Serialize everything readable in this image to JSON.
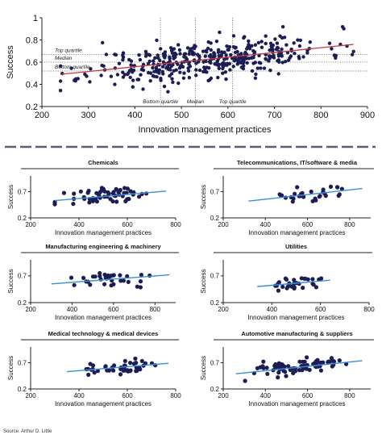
{
  "colors": {
    "dot": "#1d1d55",
    "trend_main": "#c43a3a",
    "trend_sub": "#3a8fd8",
    "axis": "#222222",
    "divider": "#5a5f78",
    "quartile_line": "#666666"
  },
  "source": "Source: Arthur D. Little",
  "chart_data": [
    {
      "type": "scatter",
      "xlabel": "Innovation management practices",
      "ylabel": "Success",
      "xlim": [
        200,
        900
      ],
      "ylim": [
        0.2,
        1.0
      ],
      "xticks": [
        "200",
        "300",
        "400",
        "500",
        "600",
        "700",
        "800",
        "900"
      ],
      "yticks": [
        "0.2",
        "0.4",
        "0.6",
        "0.8",
        "1"
      ],
      "trend": [
        [
          240,
          0.49
        ],
        [
          870,
          0.76
        ]
      ],
      "h_quartiles": [
        {
          "label": "Top quartile",
          "y": 0.67
        },
        {
          "label": "Median",
          "y": 0.6
        },
        {
          "label": "Bottom quartile",
          "y": 0.52
        }
      ],
      "v_quartiles": [
        {
          "label": "Bottom quartile",
          "x": 455
        },
        {
          "label": "Median",
          "x": 530
        },
        {
          "label": "Top quartile",
          "x": 610
        }
      ],
      "n_points": 420,
      "seed": 11
    },
    {
      "type": "scatter",
      "title": "Chemicals",
      "xlabel": "Innovation management practices",
      "ylabel": "Success",
      "xlim": [
        200,
        800
      ],
      "ylim": [
        0.2,
        1.0
      ],
      "xticks": [
        "200",
        "400",
        "600",
        "800"
      ],
      "yticks": [
        "0.2",
        "0.7"
      ],
      "trend": [
        [
          300,
          0.53
        ],
        [
          760,
          0.71
        ]
      ],
      "n_points": 60,
      "xrange": [
        300,
        760
      ],
      "seed": 21
    },
    {
      "type": "scatter",
      "title": "Telecommunications, IT/software & media",
      "xlabel": "Innovation management practices",
      "ylabel": "Success",
      "xlim": [
        200,
        900
      ],
      "ylim": [
        0.2,
        1.0
      ],
      "xticks": [
        "200",
        "400",
        "600",
        "800"
      ],
      "yticks": [
        "0.2",
        "0.7"
      ],
      "trend": [
        [
          320,
          0.52
        ],
        [
          860,
          0.76
        ]
      ],
      "n_points": 30,
      "xrange": [
        320,
        860
      ],
      "seed": 31
    },
    {
      "type": "scatter",
      "title": "Manufacturing engineering & machinery",
      "xlabel": "Innovation management practices",
      "ylabel": "Success",
      "xlim": [
        200,
        900
      ],
      "ylim": [
        0.2,
        1.0
      ],
      "xticks": [
        "200",
        "400",
        "600",
        "800"
      ],
      "yticks": [
        "0.2",
        "0.7"
      ],
      "trend": [
        [
          300,
          0.55
        ],
        [
          870,
          0.72
        ]
      ],
      "n_points": 35,
      "xrange": [
        300,
        870
      ],
      "seed": 41
    },
    {
      "type": "scatter",
      "title": "Utilities",
      "xlabel": "Innovation management practices",
      "ylabel": "Success",
      "xlim": [
        200,
        800
      ],
      "ylim": [
        0.2,
        1.0
      ],
      "xticks": [
        "200",
        "400",
        "600",
        "800"
      ],
      "yticks": [
        "0.2",
        "0.7"
      ],
      "trend": [
        [
          340,
          0.5
        ],
        [
          640,
          0.62
        ]
      ],
      "n_points": 30,
      "xrange": [
        340,
        640
      ],
      "seed": 51
    },
    {
      "type": "scatter",
      "title": "Medical technology & medical devices",
      "xlabel": "Innovation management practices",
      "ylabel": "Success",
      "xlim": [
        200,
        800
      ],
      "ylim": [
        0.2,
        1.0
      ],
      "xticks": [
        "200",
        "400",
        "600",
        "800"
      ],
      "yticks": [
        "0.2",
        "0.7"
      ],
      "trend": [
        [
          350,
          0.53
        ],
        [
          770,
          0.69
        ]
      ],
      "n_points": 45,
      "xrange": [
        350,
        770
      ],
      "seed": 61
    },
    {
      "type": "scatter",
      "title": "Automotive manufacturing & suppliers",
      "xlabel": "Innovation management practices",
      "ylabel": "Success",
      "xlim": [
        200,
        900
      ],
      "ylim": [
        0.2,
        1.0
      ],
      "xticks": [
        "200",
        "400",
        "600",
        "800"
      ],
      "yticks": [
        "0.2",
        "0.7"
      ],
      "trend": [
        [
          260,
          0.49
        ],
        [
          860,
          0.74
        ]
      ],
      "n_points": 75,
      "xrange": [
        260,
        860
      ],
      "seed": 71
    }
  ]
}
